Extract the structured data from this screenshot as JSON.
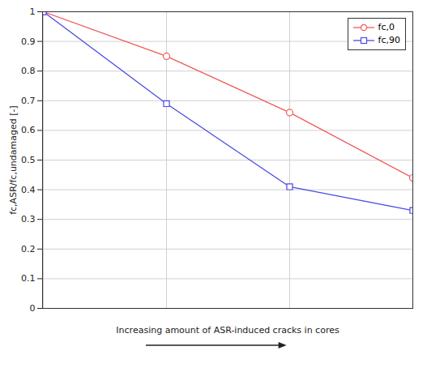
{
  "chart_data": {
    "type": "line",
    "categories": [
      null,
      null,
      null,
      null
    ],
    "series": [
      {
        "name": "fc,0",
        "color": "#f05a5a",
        "marker": "circle",
        "values": [
          1,
          0.85,
          0.66,
          0.44
        ]
      },
      {
        "name": "fc,90",
        "color": "#4b4be6",
        "marker": "square",
        "values": [
          1,
          0.69,
          0.41,
          0.33
        ]
      }
    ],
    "x_label": "Increasing amount of ASR-induced cracks in cores",
    "y_label": "fc,ASR/fc,undamaged [-]",
    "ylim": [
      0,
      1
    ],
    "yticks": [
      0,
      0.1,
      0.2,
      0.3,
      0.4,
      0.5,
      0.6,
      0.7,
      0.8,
      0.9,
      1
    ],
    "grid": true,
    "legend": "top-right",
    "tick_labels": "y"
  }
}
